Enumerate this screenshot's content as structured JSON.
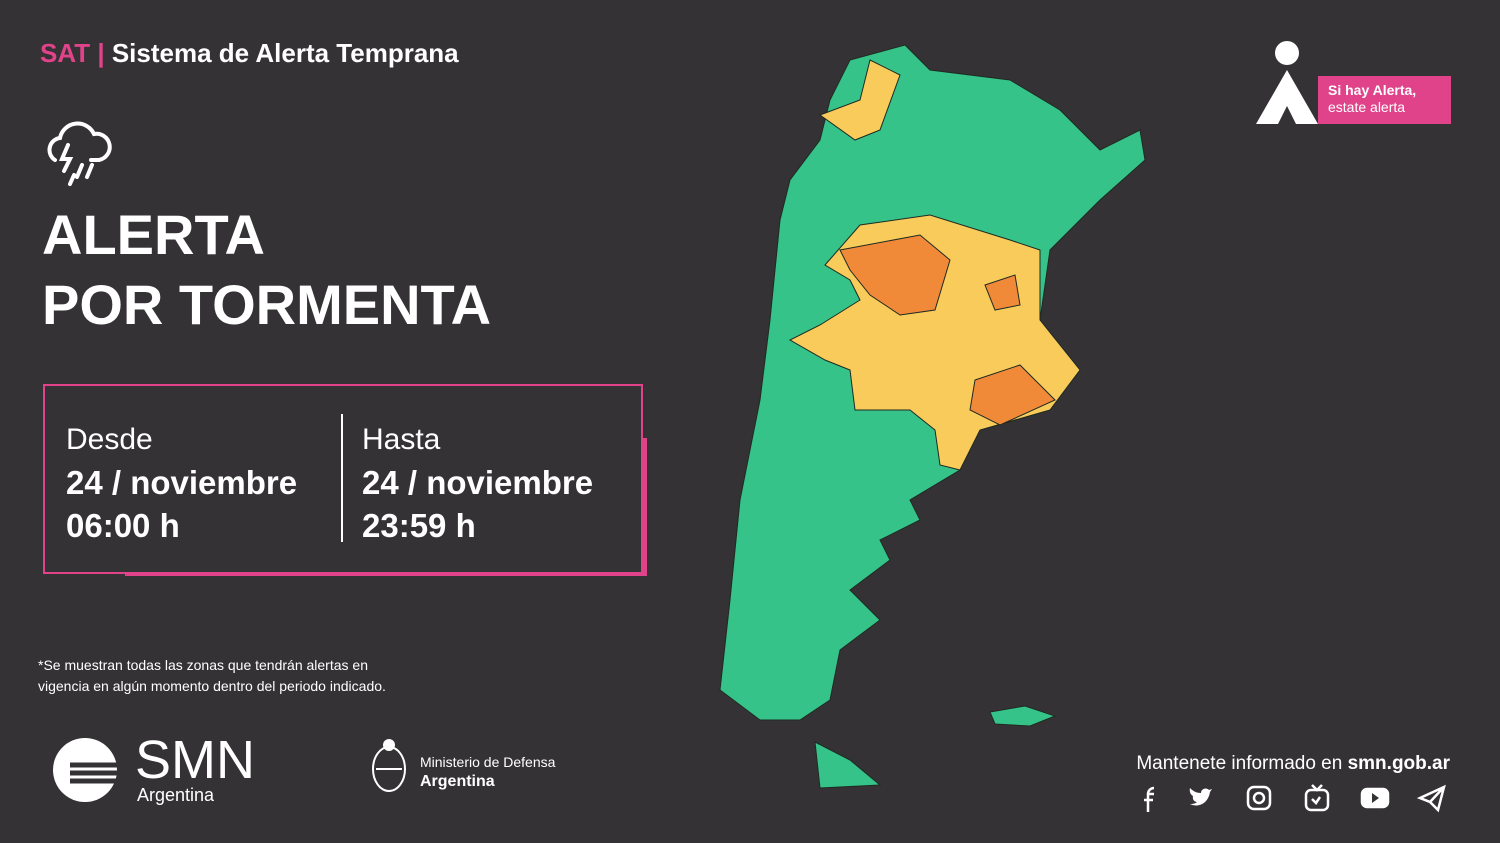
{
  "header": {
    "brand": "SAT",
    "separator": "|",
    "title": "Sistema de Alerta Temprana"
  },
  "alert": {
    "title_line1": "ALERTA",
    "title_line2": "POR TORMENTA"
  },
  "period": {
    "from": {
      "label": "Desde",
      "date": "24 / noviembre",
      "time": "06:00 h"
    },
    "to": {
      "label": "Hasta",
      "date": "24 / noviembre",
      "time": "23:59 h"
    }
  },
  "footnote": {
    "line1": "*Se muestran todas las zonas que tendrán alertas en",
    "line2": "vigencia en algún momento dentro del periodo indicado."
  },
  "badge": {
    "line1": "Si hay Alerta,",
    "line2": "estate alerta"
  },
  "logos": {
    "smn": "SMN",
    "smn_country": "Argentina",
    "ministry": "Ministerio de Defensa",
    "ministry_country": "Argentina"
  },
  "contact": {
    "text": "Mantenete informado en",
    "site": "smn.gob.ar"
  }
}
